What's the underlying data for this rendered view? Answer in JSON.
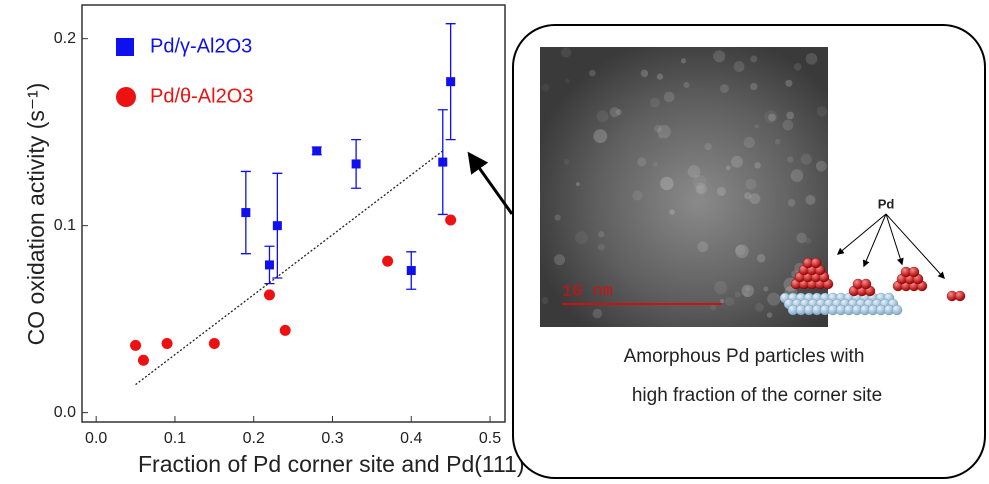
{
  "chart_data": {
    "type": "scatter",
    "x_label": "Fraction of Pd corner site and Pd(111)",
    "y_label": "CO oxidation activity (s⁻¹)",
    "xlim": [
      -0.018,
      0.519
    ],
    "ylim": [
      -0.005,
      0.218
    ],
    "xticks": [
      {
        "value": 0,
        "label": "0.0"
      },
      0.1,
      0.2,
      0.3,
      0.4,
      0.5
    ],
    "yticks": [
      {
        "value": 0,
        "label": "0.0"
      },
      0.1,
      0.2
    ],
    "series": [
      {
        "name": "Pd/γ-Al2O3",
        "color": "#1010ee",
        "marker": "square",
        "x": [
          0.19,
          0.22,
          0.23,
          0.28,
          0.33,
          0.4,
          0.44,
          0.45
        ],
        "values": [
          0.107,
          0.079,
          0.1,
          0.14,
          0.133,
          0.076,
          0.134,
          0.177
        ],
        "errors": [
          0.022,
          0.01,
          0.028,
          0.002,
          0.013,
          0.01,
          0.028,
          0.031
        ]
      },
      {
        "name": "Pd/θ-Al2O3",
        "color": "#ee1111",
        "marker": "circle",
        "x": [
          0.05,
          0.06,
          0.09,
          0.15,
          0.22,
          0.24,
          0.37,
          0.45
        ],
        "values": [
          0.036,
          0.028,
          0.037,
          0.037,
          0.063,
          0.044,
          0.081,
          0.103
        ]
      }
    ],
    "trend_line": {
      "x": [
        0.05,
        0.44
      ],
      "values": [
        0.015,
        0.14
      ]
    }
  },
  "panel": {
    "scale_bar": "10 nm",
    "atom_label": "Pd",
    "caption": [
      "Amorphous Pd particles with",
      "high fraction of the corner site"
    ]
  }
}
